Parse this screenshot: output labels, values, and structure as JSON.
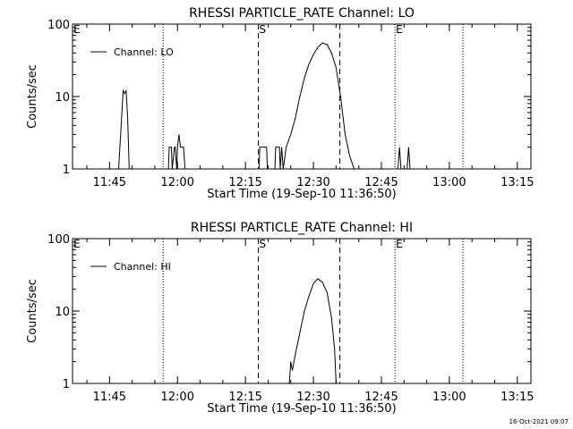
{
  "footer": {
    "timestamp": "16-Oct-2021 09:07"
  },
  "colors": {
    "background": "#ffffff",
    "foreground": "#000000"
  },
  "chart_data": [
    {
      "type": "line",
      "title": "RHESSI PARTICLE_RATE Channel: LO",
      "xlabel": "Start Time (19-Sep-10 11:36:50)",
      "ylabel": "Counts/sec",
      "y_scale": "log",
      "ylim": [
        1,
        100
      ],
      "xlim": [
        "11:36:50",
        "13:18:00"
      ],
      "y_ticks": [
        "1",
        "10",
        "100"
      ],
      "x_ticks": [
        "11:45",
        "12:00",
        "12:15",
        "12:30",
        "12:45",
        "13:00",
        "13:15"
      ],
      "legend": {
        "position": "top-left",
        "entries": [
          "Channel: LO"
        ]
      },
      "series": [
        {
          "name": "Channel: LO",
          "x": [
            "11:47:00",
            "11:47:40",
            "11:48:00",
            "11:48:20",
            "11:48:40",
            "11:49:00",
            "11:49:20",
            "11:49:50",
            "11:50:10",
            "11:58:00",
            "11:58:10",
            "11:58:40",
            "11:58:50",
            "11:59:20",
            "11:59:30",
            "11:59:50",
            "12:00:00",
            "12:00:20",
            "12:00:40",
            "12:01:20",
            "12:01:40",
            "12:18:00",
            "12:18:10",
            "12:19:40",
            "12:19:50",
            "12:20:40",
            "12:21:30",
            "12:21:40",
            "12:22:30",
            "12:22:40",
            "12:23:00",
            "12:23:20",
            "12:24:00",
            "12:25:00",
            "12:26:00",
            "12:27:00",
            "12:28:00",
            "12:29:00",
            "12:30:00",
            "12:31:00",
            "12:32:00",
            "12:33:00",
            "12:34:00",
            "12:35:00",
            "12:36:00",
            "12:37:00",
            "12:38:00",
            "12:39:00",
            "12:48:40",
            "12:49:00",
            "12:49:20",
            "12:50:40",
            "12:51:00",
            "12:51:20"
          ],
          "values": [
            1,
            5,
            12,
            11,
            12,
            5,
            1,
            1,
            1,
            1,
            2,
            2,
            1,
            2,
            2,
            1,
            2,
            3,
            2,
            2,
            1,
            1,
            2,
            2,
            1,
            1,
            1,
            2,
            2,
            1,
            2,
            1,
            2,
            3,
            5,
            10,
            18,
            28,
            38,
            48,
            55,
            52,
            40,
            25,
            10,
            3,
            1.5,
            1,
            1,
            2,
            1,
            1,
            2,
            1
          ]
        }
      ],
      "annotations": [
        {
          "label": "E",
          "time": "11:36:50",
          "style": "text"
        },
        {
          "label": "",
          "time": "11:56:50",
          "style": "dotted"
        },
        {
          "label": "S",
          "time": "12:17:50",
          "style": "dashed"
        },
        {
          "label": "",
          "time": "12:35:50",
          "style": "dashed"
        },
        {
          "label": "E",
          "time": "12:48:00",
          "style": "dotted"
        },
        {
          "label": "",
          "time": "13:03:00",
          "style": "dotted"
        }
      ]
    },
    {
      "type": "line",
      "title": "RHESSI PARTICLE_RATE Channel: HI",
      "xlabel": "Start Time (19-Sep-10 11:36:50)",
      "ylabel": "Counts/sec",
      "y_scale": "log",
      "ylim": [
        1,
        100
      ],
      "xlim": [
        "11:36:50",
        "13:18:00"
      ],
      "y_ticks": [
        "1",
        "10",
        "100"
      ],
      "x_ticks": [
        "11:45",
        "12:00",
        "12:15",
        "12:30",
        "12:45",
        "13:00",
        "13:15"
      ],
      "legend": {
        "position": "top-left",
        "entries": [
          "Channel: HI"
        ]
      },
      "series": [
        {
          "name": "Channel: HI",
          "x": [
            "12:24:40",
            "12:25:00",
            "12:25:20",
            "12:26:00",
            "12:27:00",
            "12:28:00",
            "12:29:00",
            "12:30:00",
            "12:31:00",
            "12:32:00",
            "12:33:00",
            "12:34:00",
            "12:34:40",
            "12:35:00"
          ],
          "values": [
            1,
            2,
            1.5,
            2.5,
            5,
            10,
            16,
            24,
            28,
            25,
            18,
            8,
            3,
            1
          ]
        }
      ],
      "annotations": [
        {
          "label": "E",
          "time": "11:36:50",
          "style": "text"
        },
        {
          "label": "",
          "time": "11:56:50",
          "style": "dotted"
        },
        {
          "label": "S",
          "time": "12:17:50",
          "style": "dashed"
        },
        {
          "label": "",
          "time": "12:35:50",
          "style": "dashed"
        },
        {
          "label": "E",
          "time": "12:48:00",
          "style": "dotted"
        },
        {
          "label": "",
          "time": "13:03:00",
          "style": "dotted"
        }
      ]
    }
  ]
}
